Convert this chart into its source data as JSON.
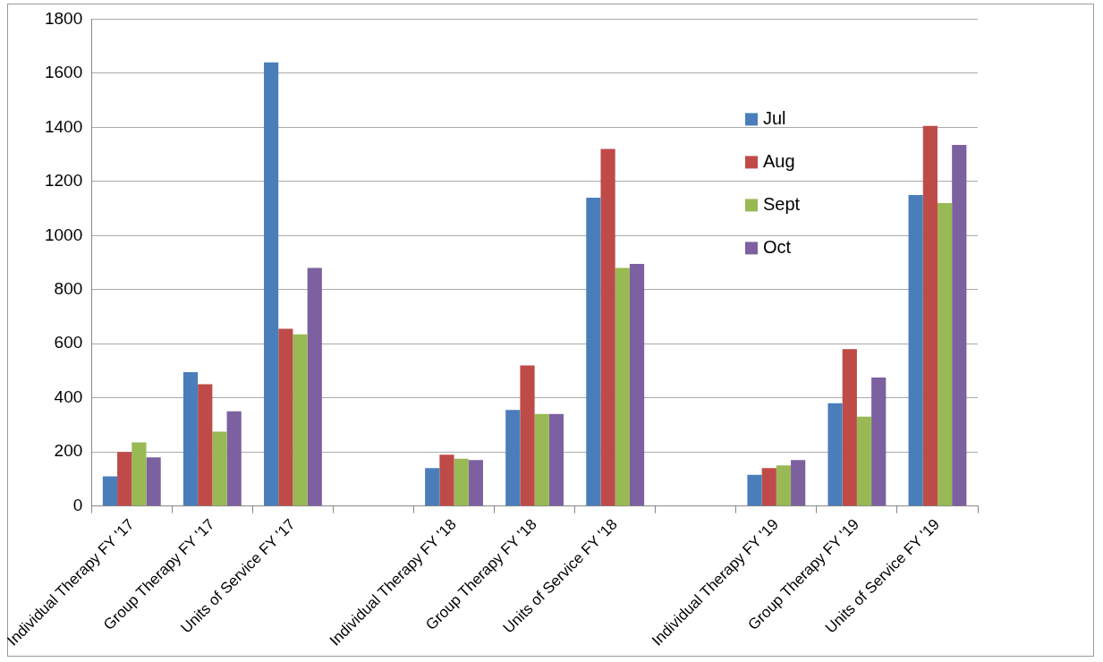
{
  "chart_data": {
    "type": "bar",
    "categories": [
      "Individual Therapy FY '17",
      "Group Therapy FY '17",
      "Units of Service FY '17",
      null,
      "Individual Therapy FY '18",
      "Group Therapy FY '18",
      "Units of Service FY '18",
      null,
      "Individual Therapy FY '19",
      "Group Therapy FY '19",
      "Units of Service FY '19"
    ],
    "series": [
      {
        "name": "Jul",
        "color": "#4a7ebb",
        "values": [
          110,
          495,
          1640,
          null,
          140,
          355,
          1140,
          null,
          115,
          380,
          1150
        ]
      },
      {
        "name": "Aug",
        "color": "#be4b48",
        "values": [
          200,
          450,
          655,
          null,
          190,
          520,
          1320,
          null,
          140,
          580,
          1405
        ]
      },
      {
        "name": "Sept",
        "color": "#98b954",
        "values": [
          235,
          275,
          635,
          null,
          175,
          340,
          880,
          null,
          150,
          330,
          1120
        ]
      },
      {
        "name": "Oct",
        "color": "#7d60a0",
        "values": [
          180,
          350,
          880,
          null,
          170,
          340,
          895,
          null,
          170,
          475,
          1335
        ]
      }
    ],
    "ylim": [
      0,
      1800
    ],
    "yticks": [
      0,
      200,
      400,
      600,
      800,
      1000,
      1200,
      1400,
      1600,
      1800
    ],
    "grid": "y",
    "legend": "top right"
  }
}
